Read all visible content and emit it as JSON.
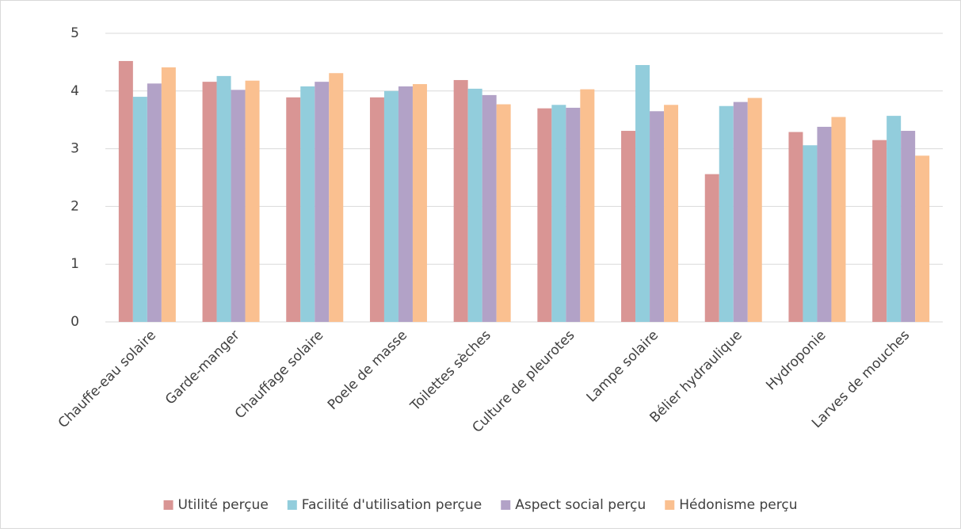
{
  "chart_data": {
    "type": "bar",
    "categories": [
      "Chauffe-eau solaire",
      "Garde-manger",
      "Chauffage solaire",
      "Poele de masse",
      "Toilettes sèches",
      "Culture de pleurotes",
      "Lampe solaire",
      "Bélier hydraulique",
      "Hydroponie",
      "Larves de mouches"
    ],
    "series": [
      {
        "name": "Utilité perçue",
        "color": "#d99594",
        "values": [
          4.52,
          4.16,
          3.89,
          3.89,
          4.19,
          3.7,
          3.31,
          2.56,
          3.29,
          3.15
        ]
      },
      {
        "name": "Facilité d'utilisation perçue",
        "color": "#92cddc",
        "values": [
          3.9,
          4.26,
          4.08,
          4.0,
          4.04,
          3.76,
          4.45,
          3.74,
          3.06,
          3.57
        ]
      },
      {
        "name": "Aspect social perçu",
        "color": "#b2a2c7",
        "values": [
          4.13,
          4.02,
          4.16,
          4.08,
          3.93,
          3.71,
          3.65,
          3.81,
          3.38,
          3.31
        ]
      },
      {
        "name": "Hédonisme perçu",
        "color": "#fac090",
        "values": [
          4.41,
          4.18,
          4.31,
          4.12,
          3.77,
          4.03,
          3.76,
          3.88,
          3.55,
          2.88
        ]
      }
    ],
    "ylim": [
      0,
      5
    ],
    "yticks": [
      0,
      1,
      2,
      3,
      4,
      5
    ],
    "grid": true,
    "legend": "bottom"
  }
}
